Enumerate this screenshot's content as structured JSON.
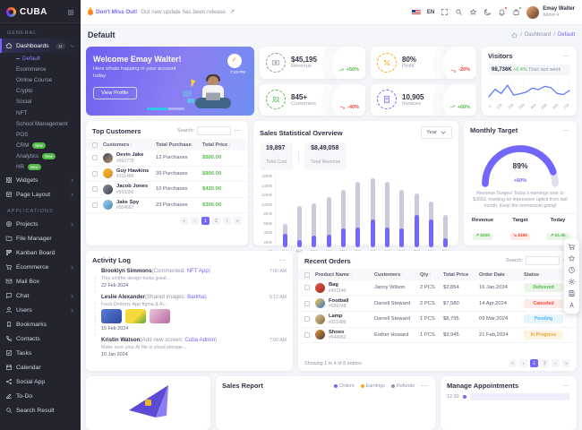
{
  "theme": {
    "primary": "#7366ff",
    "success": "#54ba4a",
    "danger": "#fc4438",
    "warning": "#ffaa05",
    "info": "#57b9f6",
    "sidebar_bg": "#23242e",
    "content_bg": "#f5f6fa"
  },
  "sidebar": {
    "logo_text": "CUBA",
    "sections": [
      {
        "title": "General",
        "items": [
          {
            "label": "Dashboards",
            "icon": "home-icon",
            "badge": "11",
            "active": true,
            "expanded": true,
            "children": [
              {
                "label": "Default",
                "active": true
              },
              {
                "label": "Ecommerce"
              },
              {
                "label": "Online Course"
              },
              {
                "label": "Crypto"
              },
              {
                "label": "Social"
              },
              {
                "label": "NFT"
              },
              {
                "label": "School Management"
              },
              {
                "label": "POS"
              },
              {
                "label": "CRM",
                "badge": "New"
              },
              {
                "label": "Analytics",
                "badge": "New"
              },
              {
                "label": "HR",
                "badge": "New"
              }
            ]
          },
          {
            "label": "Widgets",
            "icon": "grid-icon",
            "chevron": true
          },
          {
            "label": "Page Layout",
            "icon": "layout-icon",
            "chevron": true
          }
        ]
      },
      {
        "title": "Applications",
        "items": [
          {
            "label": "Projects",
            "icon": "target-icon",
            "chevron": true
          },
          {
            "label": "File Manager",
            "icon": "folder-icon"
          },
          {
            "label": "Kanban Board",
            "icon": "kanban-icon"
          },
          {
            "label": "Ecommerce",
            "icon": "cart-icon",
            "chevron": true
          },
          {
            "label": "Mail Box",
            "icon": "mail-icon"
          },
          {
            "label": "Chat",
            "icon": "chat-icon",
            "chevron": true
          },
          {
            "label": "Users",
            "icon": "user-icon",
            "chevron": true
          },
          {
            "label": "Bookmarks",
            "icon": "bookmark-icon"
          },
          {
            "label": "Contacts",
            "icon": "phone-icon"
          },
          {
            "label": "Tasks",
            "icon": "check-icon"
          },
          {
            "label": "Calendar",
            "icon": "calendar-icon"
          },
          {
            "label": "Social App",
            "icon": "share-icon"
          },
          {
            "label": "To-Do",
            "icon": "edit-icon"
          },
          {
            "label": "Search Result",
            "icon": "search-icon"
          }
        ]
      }
    ]
  },
  "topbar": {
    "announcement": {
      "highlight": "Don't Miss Out!",
      "text": "Out new update has been release.",
      "arrow": "↗"
    },
    "language": "EN",
    "icons": [
      "maximize-icon",
      "search-icon",
      "star-icon",
      "moon-icon",
      "bell-icon",
      "bag-icon"
    ],
    "user": {
      "name": "Emay Walter",
      "role": "Admin"
    }
  },
  "breadcrumb": {
    "page_title": "Default",
    "home": "Dashboard",
    "current": "Default"
  },
  "welcome": {
    "title": "Welcome Emay Walter!",
    "subtitle": "Here whats happing in your account today",
    "button": "View Profile",
    "time": "7:45 PM"
  },
  "stats": [
    {
      "value": "$45,195",
      "label": "Revenue",
      "delta": "+50%",
      "direction": "up",
      "accent": "#8f93a8",
      "icon": "money-icon"
    },
    {
      "value": "80%",
      "label": "Profit",
      "delta": "-20%",
      "direction": "down",
      "accent": "#ffaa05",
      "icon": "percent-icon"
    },
    {
      "value": "845+",
      "label": "Customers",
      "delta": "-40%",
      "direction": "down",
      "accent": "#54ba4a",
      "icon": "users-icon"
    },
    {
      "value": "10,905",
      "label": "Invoices",
      "delta": "+60%",
      "direction": "up",
      "accent": "#7366ff",
      "icon": "invoice-icon"
    }
  ],
  "visitors": {
    "title": "Visitors",
    "value": "98,736K",
    "note": "( +0.4% Than last week)",
    "chart": {
      "type": "line",
      "color": "#5c7cfa",
      "x_labels": [
        "0",
        "10k",
        "20k",
        "30k",
        "40k",
        "50k",
        "60k",
        "70k"
      ],
      "values": [
        22,
        58,
        38,
        78,
        30,
        36,
        44,
        64,
        56,
        72,
        66,
        38,
        32,
        52
      ]
    }
  },
  "top_customers": {
    "title": "Top Customers",
    "search_label": "Search:",
    "columns": [
      "Customers",
      "Total Purchase",
      "Total Price"
    ],
    "rows": [
      {
        "name": "Devin Jake",
        "id": "#562778",
        "purchases": "12 Purchases",
        "price": "$500.00",
        "avatar": "linear-gradient(135deg,#3b4a63,#b98a68)"
      },
      {
        "name": "Guy Hawkins",
        "id": "#321489",
        "purchases": "39 Purchases",
        "price": "$900.00",
        "avatar": "linear-gradient(135deg,#f2c230,#d88a2b)"
      },
      {
        "name": "Jacob Jones",
        "id": "#569356",
        "purchases": "10 Purchases",
        "price": "$420.00",
        "avatar": "linear-gradient(135deg,#8b8f9c,#3c3f4c)"
      },
      {
        "name": "Jake Spy",
        "id": "#954687",
        "purchases": "23 Purchases",
        "price": "$300.00",
        "avatar": "linear-gradient(135deg,#9fd4ef,#4a86b8)"
      }
    ],
    "pagination": [
      "«",
      "‹",
      "1",
      "2",
      "›",
      "»"
    ],
    "active_page": "1"
  },
  "sales": {
    "title": "Sales Statistical Overview",
    "period": "Year",
    "total_cost": "19,897",
    "total_cost_label": "Total Cost",
    "total_revenue": "$8,49,058",
    "total_revenue_label": "Total Revenue",
    "chart": {
      "type": "bar",
      "categories": [
        "Jan",
        "Feb",
        "Mar",
        "Apr",
        "May",
        "Jun",
        "Jul",
        "Aug",
        "Sep",
        "Oct",
        "Nov",
        "Dec"
      ],
      "series": [
        {
          "name": "Cost (purple)",
          "values": [
            300,
            150,
            250,
            270,
            400,
            420,
            600,
            420,
            400,
            700,
            600,
            200
          ]
        },
        {
          "name": "Revenue (gray)",
          "values": [
            500,
            900,
            950,
            1100,
            1250,
            1420,
            1500,
            1420,
            1250,
            1180,
            1000,
            700
          ]
        }
      ],
      "y_ticks": [
        "1600k",
        "1400k",
        "1200k",
        "1000k",
        "800k",
        "600k",
        "400k",
        "200k",
        "0k"
      ],
      "ylim": [
        0,
        1600
      ]
    }
  },
  "monthly_target": {
    "title": "Monthly Target",
    "percent": "89%",
    "percent_value": 89,
    "delta": "+60%",
    "description": "Revenue Surges! Today's earnings soar to $3653, marking an impressive uptick from last month. Keep the momentum going!",
    "stats": [
      {
        "label": "Revenue",
        "pill": "$20k",
        "direction": "up"
      },
      {
        "label": "Target",
        "pill": "$19k",
        "direction": "down"
      },
      {
        "label": "Today",
        "pill": "$1.5k",
        "direction": "up"
      }
    ]
  },
  "activity": {
    "title": "Activity Log",
    "entries": [
      {
        "name": "Brooklyn Simmons",
        "action": "(Commented:",
        "link": "NFT App",
        "suffix": ")",
        "time": "7:00 AM",
        "desc": "This smithe design looks great...",
        "date": "22 Feb 2024",
        "color": "#7366ff",
        "images": 0
      },
      {
        "name": "Leslie Alexander",
        "action": "(Shared images:",
        "link": "Barkha",
        "suffix": ")",
        "time": "6:12 AM",
        "desc": "Food Delivery App figma & Ai...",
        "date": "15 Feb 2024",
        "color": "#9ba0b5",
        "images": 3
      },
      {
        "name": "Kristin Watson",
        "action": "(Add new screen:",
        "link": "Cuba Admin",
        "suffix": ")",
        "time": "7:00 AM",
        "desc": "Make sure your AI file is cloud storage...",
        "date": "10 Jan 2024",
        "color": "#54ba4a",
        "images": 0
      }
    ]
  },
  "orders": {
    "title": "Recent Orders",
    "search_label": "Search:",
    "columns": [
      "Product Name",
      "Customers",
      "Qty",
      "Total Price",
      "Order Date",
      "Status"
    ],
    "rows": [
      {
        "product": "Bag",
        "id": "#452140",
        "customer": "Janny Wilson",
        "qty": "2 PCS",
        "price": "$2,854",
        "date": "16 Jan,2024",
        "status": "Delivered",
        "status_type": "success",
        "thumb": "linear-gradient(135deg,#e8564a,#9c2d24)"
      },
      {
        "product": "Football",
        "id": "#696748",
        "customer": "Darrell Steward",
        "qty": "2 PCS",
        "price": "$7,580",
        "date": "14 Apr,2024",
        "status": "Canceled",
        "status_type": "danger",
        "thumb": "linear-gradient(135deg,#f2d13a,#3c6ed8)"
      },
      {
        "product": "Lamp",
        "id": "#321489",
        "customer": "Darrell Steward",
        "qty": "1 PCS",
        "price": "$8,795",
        "date": "09 Mar,2024",
        "status": "Pending",
        "status_type": "info",
        "thumb": "linear-gradient(135deg,#d8c49a,#8a6a3b)"
      },
      {
        "product": "Shoes",
        "id": "#644962",
        "customer": "Esther Howard",
        "qty": "1 PCS",
        "price": "$9,945",
        "date": "21 Feb,2024",
        "status": "In Progress",
        "status_type": "warning",
        "thumb": "linear-gradient(135deg,#e89a3d,#4a3b34)"
      }
    ],
    "footer": "Showing 1 to 4 of 8 entries",
    "pagination": [
      "«",
      "‹",
      "1",
      "2",
      "›",
      "»"
    ],
    "active_page": "1"
  },
  "bottom": {
    "sales_report": {
      "title": "Sales Report",
      "legend": [
        {
          "label": "Orders",
          "color": "#7366ff"
        },
        {
          "label": "Earnings",
          "color": "#ffaa05"
        },
        {
          "label": "Refunds",
          "color": "#8f93a8"
        }
      ]
    },
    "appointments": {
      "title": "Manage Appointments",
      "first_time": "12:30"
    }
  },
  "floating_toolbar": {
    "icons": [
      "cart-icon",
      "star-icon",
      "clock-icon",
      "gear-icon",
      "save-icon",
      "text-icon"
    ]
  }
}
